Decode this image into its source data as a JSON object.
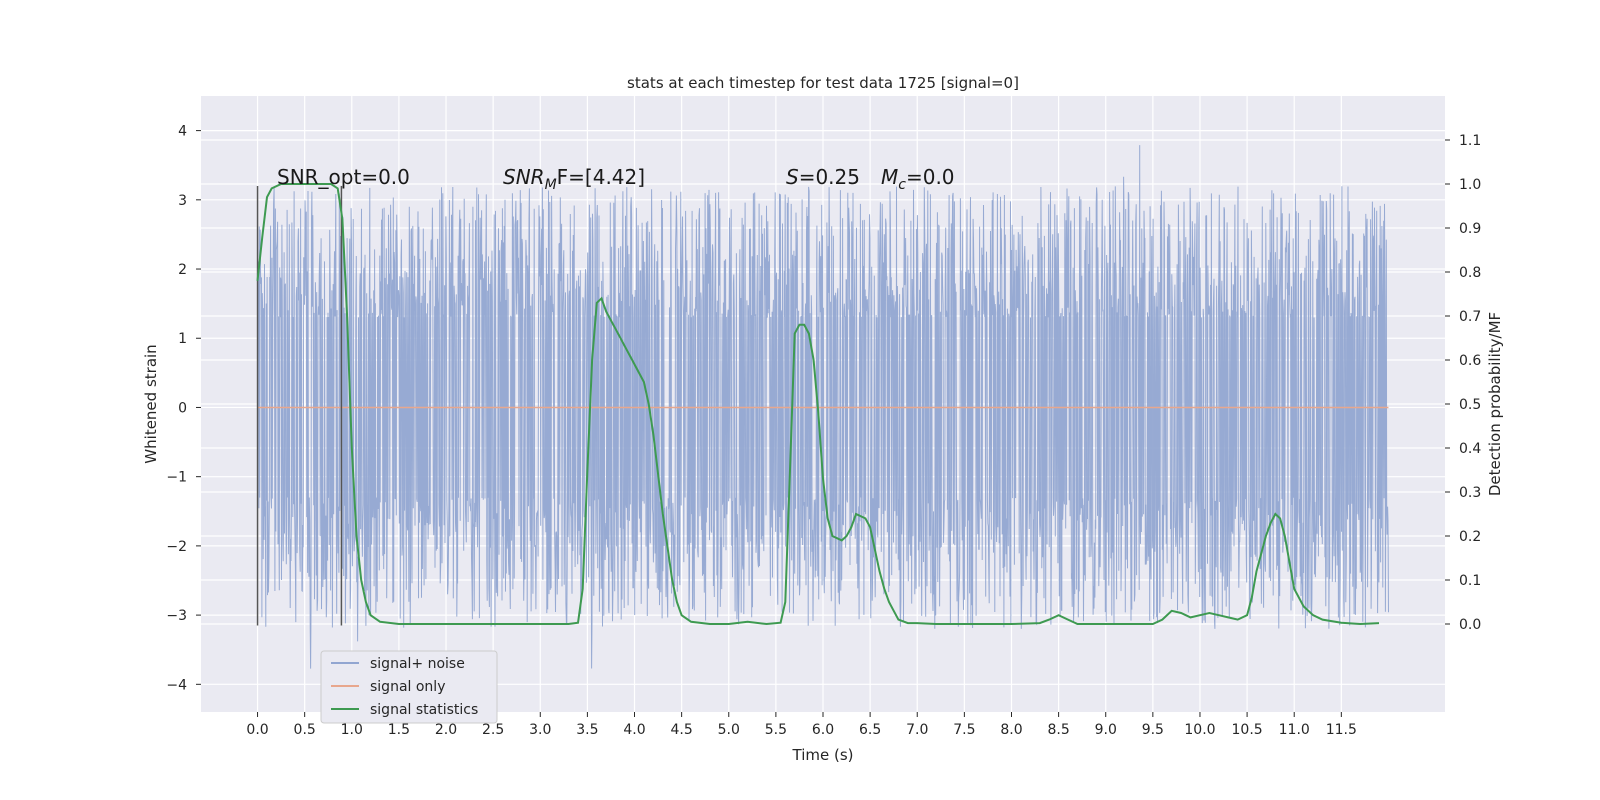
{
  "chart_data": {
    "type": "line",
    "title": "stats at each timestep for test data 1725 [signal=0]",
    "xlabel": "Time (s)",
    "ylabel_left": "Whitened strain",
    "ylabel_right": "Detection probability/MF",
    "xlim": [
      -0.6,
      12.6
    ],
    "ylim_left": [
      -4.4,
      4.5
    ],
    "ylim_right": [
      -0.2,
      1.2
    ],
    "x_ticks": [
      "0.0",
      "0.5",
      "1.0",
      "1.5",
      "2.0",
      "2.5",
      "3.0",
      "3.5",
      "4.0",
      "4.5",
      "5.0",
      "5.5",
      "6.0",
      "6.5",
      "7.0",
      "7.5",
      "8.0",
      "8.5",
      "9.0",
      "9.5",
      "10.0",
      "10.5",
      "11.0",
      "11.5"
    ],
    "y_ticks_left": [
      "−4",
      "−3",
      "−2",
      "−1",
      "0",
      "1",
      "2",
      "3",
      "4"
    ],
    "y_ticks_right": [
      "0.0",
      "0.1",
      "0.2",
      "0.3",
      "0.4",
      "0.5",
      "0.6",
      "0.7",
      "0.8",
      "0.9",
      "1.0",
      "1.1"
    ],
    "grid": true,
    "legend_position": "lower-left",
    "annotations": {
      "snr_opt": "SNR_opt=0.0",
      "snr_mf_base": "SNR",
      "snr_mf_sub": "M",
      "snr_mf_rest": "F=[4.42]",
      "s_var": "S",
      "s_rest": "=0.25",
      "mc_var": "M",
      "mc_sub": "c",
      "mc_rest": "=0.0"
    },
    "vlines": [
      0.0,
      0.89
    ],
    "series": [
      {
        "name": "signal+ noise",
        "color": "#92a6d1",
        "axis": "left",
        "kind": "noise",
        "x_range": [
          0.0,
          12.0
        ],
        "spread_core": 1.3,
        "spread_peak": 3.2
      },
      {
        "name": "signal only",
        "color": "#e8a78d",
        "axis": "left",
        "x": [
          0.0,
          12.0
        ],
        "y": [
          0.0,
          0.0
        ]
      },
      {
        "name": "signal statistics",
        "color": "#3e9a51",
        "axis": "right",
        "x": [
          0.0,
          0.05,
          0.1,
          0.15,
          0.25,
          0.4,
          0.6,
          0.7,
          0.78,
          0.85,
          0.9,
          0.95,
          1.0,
          1.05,
          1.1,
          1.15,
          1.2,
          1.3,
          1.5,
          2.0,
          2.5,
          3.0,
          3.3,
          3.4,
          3.45,
          3.5,
          3.55,
          3.6,
          3.65,
          3.7,
          3.8,
          3.9,
          4.0,
          4.1,
          4.15,
          4.2,
          4.3,
          4.4,
          4.45,
          4.5,
          4.6,
          4.8,
          5.0,
          5.2,
          5.4,
          5.55,
          5.6,
          5.65,
          5.7,
          5.75,
          5.8,
          5.85,
          5.9,
          5.95,
          6.0,
          6.05,
          6.1,
          6.2,
          6.25,
          6.3,
          6.35,
          6.45,
          6.5,
          6.55,
          6.6,
          6.65,
          6.7,
          6.75,
          6.8,
          6.9,
          7.0,
          7.2,
          7.5,
          7.8,
          8.0,
          8.3,
          8.4,
          8.5,
          8.6,
          8.7,
          9.0,
          9.3,
          9.5,
          9.6,
          9.7,
          9.8,
          9.9,
          10.0,
          10.1,
          10.2,
          10.3,
          10.4,
          10.5,
          10.55,
          10.6,
          10.7,
          10.75,
          10.8,
          10.85,
          10.9,
          10.95,
          11.0,
          11.1,
          11.2,
          11.3,
          11.5,
          11.7,
          11.9
        ],
        "y": [
          0.78,
          0.88,
          0.97,
          0.99,
          1.0,
          1.0,
          1.0,
          1.0,
          1.0,
          0.99,
          0.92,
          0.7,
          0.4,
          0.2,
          0.1,
          0.05,
          0.02,
          0.005,
          0.0,
          0.0,
          0.0,
          0.0,
          0.0,
          0.003,
          0.08,
          0.35,
          0.6,
          0.73,
          0.74,
          0.71,
          0.67,
          0.63,
          0.59,
          0.55,
          0.5,
          0.43,
          0.25,
          0.1,
          0.05,
          0.02,
          0.005,
          0.0,
          0.0,
          0.005,
          0.0,
          0.003,
          0.05,
          0.35,
          0.66,
          0.68,
          0.68,
          0.66,
          0.6,
          0.48,
          0.33,
          0.24,
          0.2,
          0.19,
          0.2,
          0.22,
          0.25,
          0.24,
          0.22,
          0.17,
          0.12,
          0.08,
          0.05,
          0.03,
          0.01,
          0.002,
          0.002,
          0.0,
          0.0,
          0.0,
          0.0,
          0.002,
          0.01,
          0.02,
          0.01,
          0.0,
          0.0,
          0.0,
          0.0,
          0.01,
          0.03,
          0.025,
          0.015,
          0.02,
          0.025,
          0.02,
          0.015,
          0.01,
          0.02,
          0.06,
          0.12,
          0.2,
          0.23,
          0.25,
          0.24,
          0.2,
          0.14,
          0.08,
          0.04,
          0.02,
          0.01,
          0.003,
          0.0,
          0.002
        ]
      }
    ]
  }
}
